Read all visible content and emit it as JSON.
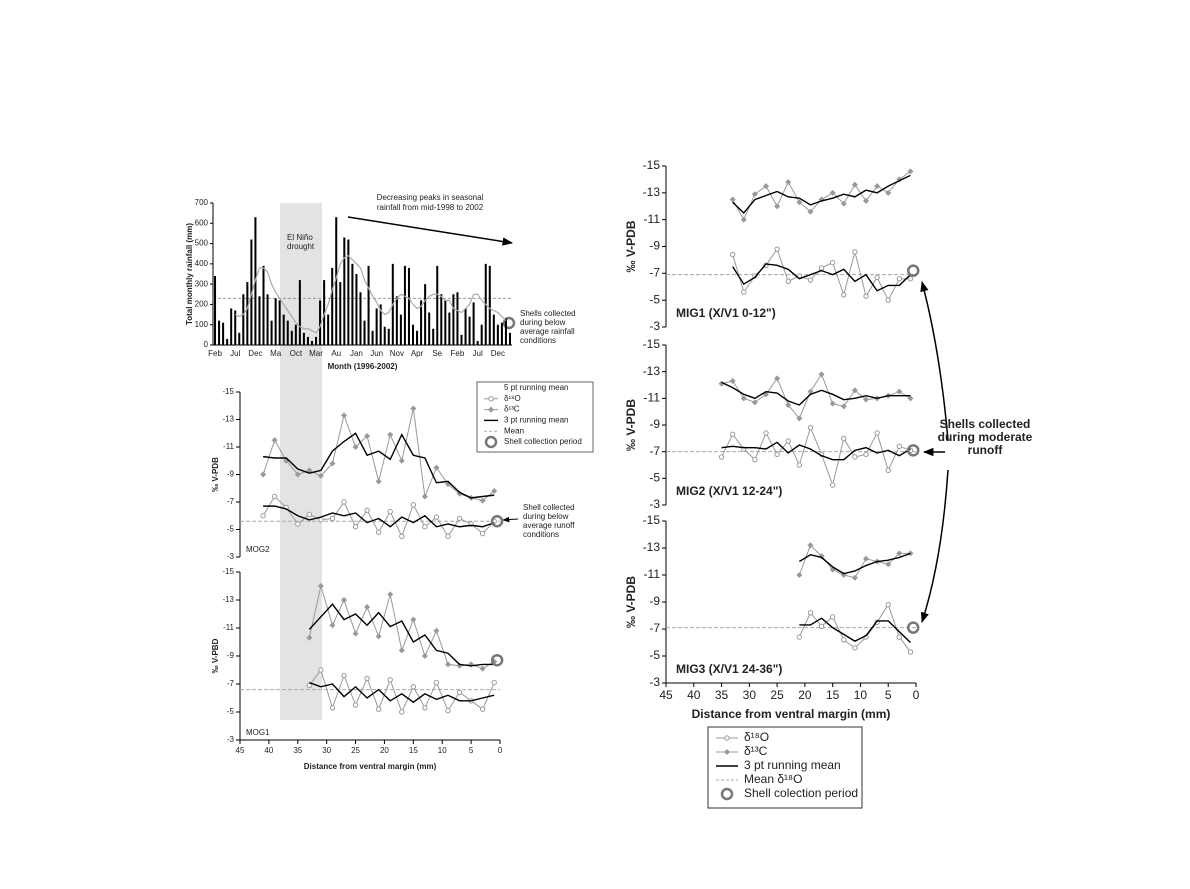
{
  "chart_data": [
    {
      "type": "bar",
      "y_label": "Total monthly rainfall (mm)",
      "x_label": "Month (1996-2002)",
      "categories": [
        "Feb",
        null,
        null,
        null,
        null,
        "Jul",
        null,
        null,
        null,
        null,
        "Dec",
        null,
        null,
        null,
        null,
        "Ma",
        null,
        null,
        null,
        null,
        "Oct",
        null,
        null,
        null,
        null,
        "Mar",
        null,
        null,
        null,
        null,
        "Au",
        null,
        null,
        null,
        null,
        "Jan",
        null,
        null,
        null,
        null,
        "Jun",
        null,
        null,
        null,
        null,
        "Nov",
        null,
        null,
        null,
        null,
        "Apr",
        null,
        null,
        null,
        null,
        "Se",
        null,
        null,
        null,
        null,
        "Feb",
        null,
        null,
        null,
        null,
        "Jul",
        null,
        null,
        null,
        null,
        "Dec",
        null,
        null,
        null
      ],
      "series": [
        {
          "type": "bar",
          "color": "#000000",
          "values": [
            340,
            120,
            110,
            30,
            180,
            170,
            60,
            250,
            310,
            520,
            630,
            240,
            390,
            250,
            120,
            230,
            220,
            150,
            120,
            70,
            100,
            320,
            60,
            40,
            20,
            40,
            220,
            320,
            150,
            380,
            630,
            310,
            530,
            520,
            400,
            350,
            260,
            120,
            390,
            70,
            180,
            200,
            90,
            80,
            400,
            240,
            150,
            390,
            380,
            100,
            70,
            220,
            300,
            160,
            80,
            390,
            250,
            220,
            160,
            250,
            260,
            50,
            180,
            140,
            210,
            20,
            100,
            400,
            390,
            150,
            100,
            110,
            130,
            60
          ]
        },
        {
          "type": "line",
          "color": "#aaaaaa",
          "values": [
            null,
            null,
            null,
            null,
            null,
            150,
            140,
            150,
            180,
            250,
            320,
            380,
            380,
            360,
            300,
            260,
            230,
            200,
            170,
            140,
            110,
            90,
            80,
            80,
            70,
            60,
            90,
            150,
            200,
            270,
            330,
            400,
            430,
            440,
            420,
            400,
            380,
            320,
            280,
            240,
            210,
            170,
            150,
            160,
            200,
            230,
            250,
            240,
            230,
            200,
            180,
            190,
            220,
            240,
            250,
            250,
            240,
            220,
            220,
            180,
            170,
            160,
            180,
            200,
            250,
            250,
            220,
            200,
            180,
            170,
            160,
            140,
            120,
            null
          ]
        }
      ],
      "mean": 230,
      "ylim": [
        0,
        700
      ],
      "yticks": [
        0,
        100,
        200,
        300,
        400,
        500,
        600,
        700
      ],
      "annotations": [
        {
          "lines": [
            "El Niño",
            "drought"
          ]
        },
        {
          "lines": [
            "Decreasing peaks in seasonal",
            "rainfall from mid-1998 to 2002"
          ]
        },
        {
          "lines": [
            "Shells collected",
            "during below",
            "average rainfall",
            "conditions"
          ]
        }
      ]
    },
    {
      "type": "line",
      "label": "MOG2",
      "y_label": "‰ V-PDB",
      "xlim": [
        45,
        0
      ],
      "ylim": [
        -3,
        -15
      ],
      "yticks": [
        -15,
        -13,
        -11,
        -9,
        -7,
        -5,
        -3
      ],
      "x": [
        41,
        39,
        37,
        35,
        33,
        31,
        29,
        27,
        25,
        23,
        21,
        19,
        17,
        15,
        13,
        11,
        9,
        7,
        5,
        3,
        1
      ],
      "series": [
        {
          "name": "δ¹³C",
          "color": "#999999",
          "marker": "diamond",
          "values": [
            -9.0,
            -11.5,
            -10.0,
            -9.0,
            -9.3,
            -8.9,
            -9.8,
            -13.3,
            -11.0,
            -11.8,
            -8.5,
            -11.9,
            -10.0,
            -13.8,
            -7.4,
            -9.5,
            -8.3,
            -7.6,
            -7.3,
            -7.1,
            -7.8
          ]
        },
        {
          "name": "3 pt running mean",
          "color": "#000000",
          "values": [
            -10.3,
            -10.2,
            -10.2,
            -9.4,
            -9.1,
            -9.3,
            -10.7,
            -11.4,
            -12.0,
            -10.4,
            -10.7,
            -10.1,
            -11.9,
            -10.4,
            -10.2,
            -8.4,
            -8.5,
            -7.7,
            -7.3,
            -7.4,
            -7.5
          ]
        },
        {
          "name": "δ¹⁸O",
          "color": "#999999",
          "marker": "circle",
          "values": [
            -6.0,
            -7.4,
            -6.6,
            -5.4,
            -6.1,
            -5.7,
            -5.8,
            -7.0,
            -5.2,
            -6.4,
            -4.8,
            -6.3,
            -4.5,
            -6.8,
            -5.2,
            -5.9,
            -4.5,
            -5.8,
            -5.4,
            -4.7,
            -5.6
          ]
        },
        {
          "name": "3 pt running mean",
          "color": "#000000",
          "values": [
            -6.7,
            -6.7,
            -6.5,
            -6.0,
            -5.7,
            -5.9,
            -6.2,
            -6.0,
            -6.2,
            -5.5,
            -5.8,
            -5.2,
            -5.9,
            -5.5,
            -6.0,
            -5.2,
            -5.4,
            -5.2,
            -5.3,
            -5.2,
            -5.5
          ]
        }
      ],
      "mean": -5.6,
      "collection_point": {
        "x": 0.5,
        "y": -5.6
      },
      "annotations": [
        {
          "lines": [
            "Shell collected",
            "during below",
            "average runoff",
            "conditions"
          ]
        }
      ]
    },
    {
      "type": "line",
      "label": "MOG1",
      "y_label": "‰ V-PBD",
      "x_label": "Distance from ventral margin (mm)",
      "xlim": [
        45,
        0
      ],
      "xticks": [
        45,
        40,
        35,
        30,
        25,
        20,
        15,
        10,
        5,
        0
      ],
      "ylim": [
        -3,
        -15
      ],
      "yticks": [
        -15,
        -13,
        -11,
        -9,
        -7,
        -5,
        -3
      ],
      "x": [
        33,
        31,
        29,
        27,
        25,
        23,
        21,
        19,
        17,
        15,
        13,
        11,
        9,
        7,
        5,
        3,
        1
      ],
      "series": [
        {
          "name": "δ¹³C",
          "color": "#999999",
          "marker": "diamond",
          "values": [
            -10.3,
            -14.0,
            -11.2,
            -13.0,
            -10.6,
            -12.5,
            -10.4,
            -13.4,
            -9.4,
            -11.6,
            -9.0,
            -10.8,
            -8.4,
            -8.3,
            -8.4,
            -8.1,
            -8.6
          ]
        },
        {
          "name": "3 pt running mean",
          "color": "#000000",
          "values": [
            -10.9,
            -11.8,
            -12.7,
            -11.6,
            -12.0,
            -11.2,
            -12.1,
            -11.1,
            -11.5,
            -10.0,
            -10.5,
            -9.4,
            -9.2,
            -8.4,
            -8.3,
            -8.4,
            -8.4
          ]
        },
        {
          "name": "δ¹⁸O",
          "color": "#999999",
          "marker": "circle",
          "values": [
            -6.9,
            -8.0,
            -5.3,
            -7.6,
            -5.5,
            -7.4,
            -5.2,
            -7.3,
            -5.0,
            -6.8,
            -5.3,
            -7.1,
            -5.1,
            -6.4,
            -5.8,
            -5.2,
            -7.1
          ]
        },
        {
          "name": "3 pt running mean",
          "color": "#000000",
          "values": [
            -7.1,
            -6.8,
            -7.0,
            -6.1,
            -6.8,
            -6.0,
            -6.6,
            -5.8,
            -6.3,
            -5.7,
            -6.3,
            -5.9,
            -6.2,
            -5.8,
            -5.8,
            -6.0,
            -6.2
          ]
        }
      ],
      "mean": -6.6,
      "collection_point": {
        "x": 0.5,
        "y": -8.7
      }
    },
    {
      "type": "line",
      "label": "MIG1 (X/V1 0-12\")",
      "y_label": "‰ V-PDB",
      "xlim": [
        45,
        0
      ],
      "ylim": [
        -3,
        -15
      ],
      "yticks": [
        -15,
        -13,
        -11,
        -9,
        -7,
        -5,
        -3
      ],
      "x": [
        33,
        31,
        29,
        27,
        25,
        23,
        21,
        19,
        17,
        15,
        13,
        11,
        9,
        7,
        5,
        3,
        1
      ],
      "series": [
        {
          "name": "δ¹³C",
          "color": "#999999",
          "marker": "diamond",
          "values": [
            -12.5,
            -11.0,
            -12.9,
            -13.5,
            -12.0,
            -13.8,
            -12.3,
            -11.6,
            -12.5,
            -13.0,
            -12.2,
            -13.6,
            -12.4,
            -13.5,
            -13.0,
            -14.0,
            -14.6
          ]
        },
        {
          "name": "3 pt running mean",
          "color": "#000000",
          "values": [
            -12.3,
            -11.5,
            -12.5,
            -12.8,
            -13.1,
            -12.7,
            -12.6,
            -12.1,
            -12.4,
            -12.6,
            -12.9,
            -12.7,
            -13.2,
            -13.0,
            -13.5,
            -13.9,
            -14.3
          ]
        },
        {
          "name": "δ¹⁸O",
          "color": "#999999",
          "marker": "circle",
          "values": [
            -8.4,
            -5.6,
            -6.8,
            -7.6,
            -8.8,
            -6.4,
            -6.8,
            -6.5,
            -7.4,
            -7.8,
            -5.4,
            -8.6,
            -5.3,
            -6.7,
            -5.0,
            -6.6,
            -6.6
          ]
        },
        {
          "name": "3 pt running mean",
          "color": "#000000",
          "values": [
            -7.5,
            -6.2,
            -6.7,
            -7.7,
            -7.6,
            -7.3,
            -6.6,
            -6.9,
            -7.2,
            -6.9,
            -7.3,
            -6.4,
            -6.9,
            -5.7,
            -6.1,
            -6.1,
            -6.9
          ]
        }
      ],
      "mean": -6.9,
      "collection_point": {
        "x": 0.5,
        "y": -7.2
      }
    },
    {
      "type": "line",
      "label": "MIG2 (X/V1 12-24\")",
      "y_label": "‰ V-PDB",
      "xlim": [
        45,
        0
      ],
      "ylim": [
        -3,
        -15
      ],
      "yticks": [
        -15,
        -13,
        -11,
        -9,
        -7,
        -5,
        -3
      ],
      "x": [
        35,
        33,
        31,
        29,
        27,
        25,
        23,
        21,
        19,
        17,
        15,
        13,
        11,
        9,
        7,
        5,
        3,
        1
      ],
      "series": [
        {
          "name": "δ¹³C",
          "color": "#999999",
          "marker": "diamond",
          "values": [
            -12.1,
            -12.3,
            -11.0,
            -10.7,
            -11.3,
            -12.5,
            -10.5,
            -9.5,
            -11.5,
            -12.8,
            -10.6,
            -10.4,
            -11.6,
            -10.9,
            -11.0,
            -11.2,
            -11.5,
            -11.0
          ]
        },
        {
          "name": "3 pt running mean",
          "color": "#000000",
          "values": [
            -12.2,
            -11.8,
            -11.3,
            -11.0,
            -11.5,
            -11.4,
            -10.8,
            -10.5,
            -11.3,
            -11.6,
            -11.3,
            -10.9,
            -11.0,
            -11.2,
            -11.0,
            -11.2,
            -11.2,
            -11.2
          ]
        },
        {
          "name": "δ¹⁸O",
          "color": "#999999",
          "marker": "circle",
          "values": [
            -6.6,
            -8.3,
            -7.2,
            -6.4,
            -8.4,
            -6.8,
            -7.8,
            -6.0,
            -8.8,
            -6.8,
            -4.5,
            -8.0,
            -6.6,
            -6.8,
            -8.4,
            -5.6,
            -7.4,
            -7.1
          ]
        },
        {
          "name": "3 pt running mean",
          "color": "#000000",
          "values": [
            -7.3,
            -7.4,
            -7.3,
            -7.3,
            -7.2,
            -7.7,
            -6.9,
            -7.5,
            -7.2,
            -6.7,
            -6.4,
            -6.4,
            -7.1,
            -7.3,
            -6.9,
            -7.1,
            -6.7,
            -7.2
          ]
        }
      ],
      "mean": -7.0,
      "collection_point": {
        "x": 0.5,
        "y": -7.1
      }
    },
    {
      "type": "line",
      "label": "MIG3 (X/V1 24-36\")",
      "y_label": "‰ V-PDB",
      "x_label": "Distance from ventral margin (mm)",
      "xlim": [
        45,
        0
      ],
      "xticks": [
        45,
        40,
        35,
        30,
        25,
        20,
        15,
        10,
        5,
        0
      ],
      "ylim": [
        -3,
        -15
      ],
      "yticks": [
        -15,
        -13,
        -11,
        -9,
        -7,
        -5,
        -3
      ],
      "x": [
        21,
        19,
        17,
        15,
        13,
        11,
        9,
        7,
        5,
        3,
        1
      ],
      "series": [
        {
          "name": "δ¹³C",
          "color": "#999999",
          "marker": "diamond",
          "values": [
            -11.0,
            -13.2,
            -12.4,
            -11.4,
            -11.0,
            -10.8,
            -12.2,
            -12.0,
            -11.8,
            -12.6,
            -12.6
          ]
        },
        {
          "name": "3 pt running mean",
          "color": "#000000",
          "values": [
            -12.0,
            -12.5,
            -12.3,
            -11.6,
            -11.1,
            -11.3,
            -11.7,
            -12.0,
            -12.1,
            -12.3,
            -12.6
          ]
        },
        {
          "name": "δ¹⁸O",
          "color": "#999999",
          "marker": "circle",
          "values": [
            -6.4,
            -8.2,
            -7.2,
            -7.9,
            -6.2,
            -5.6,
            -6.4,
            -7.5,
            -8.8,
            -6.4,
            -5.3
          ]
        },
        {
          "name": "3 pt running mean",
          "color": "#000000",
          "values": [
            -7.3,
            -7.3,
            -7.8,
            -7.1,
            -6.6,
            -6.1,
            -6.5,
            -7.6,
            -7.6,
            -6.8,
            -6.0
          ]
        }
      ],
      "mean": -7.1,
      "collection_point": {
        "x": 0.5,
        "y": -7.1
      }
    }
  ],
  "legends": [
    {
      "entries": [
        {
          "label": "5 pt running mean",
          "symbol": "none"
        },
        {
          "label": "δ¹⁸O",
          "symbol": "circle"
        },
        {
          "label": "δ¹³C",
          "symbol": "diamond"
        },
        {
          "label": "3 pt running mean",
          "symbol": "line"
        },
        {
          "label": "Mean",
          "symbol": "dash"
        },
        {
          "label": "Shell collection period",
          "symbol": "ring"
        }
      ]
    },
    {
      "entries": [
        {
          "label": "δ¹⁸O",
          "symbol": "circle"
        },
        {
          "label": "δ¹³C",
          "symbol": "diamond"
        },
        {
          "label": "3 pt running mean",
          "symbol": "line"
        },
        {
          "label": "Mean δ¹⁸O",
          "symbol": "dash"
        },
        {
          "label": "Shell colection period",
          "symbol": "ring"
        }
      ]
    }
  ],
  "annotations": [
    {
      "lines": [
        "Shells collected",
        "during moderate",
        "runoff"
      ]
    }
  ]
}
